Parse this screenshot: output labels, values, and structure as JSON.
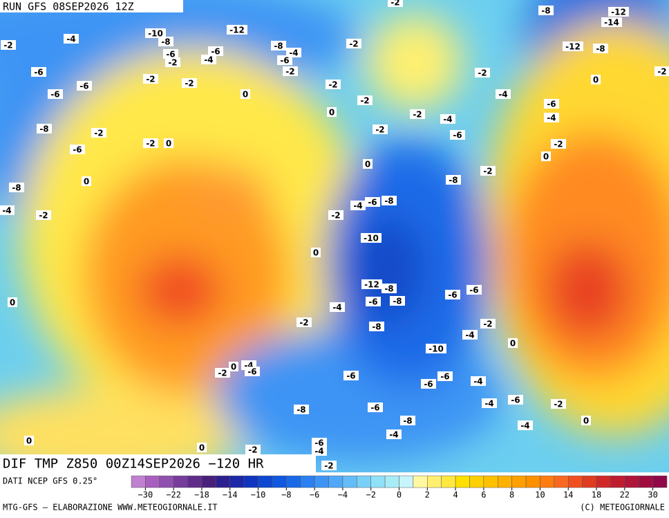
{
  "header": {
    "run": "RUN GFS 08SEP2026 12Z"
  },
  "map": {
    "labels": [
      "-2",
      "-8",
      "-12",
      "-14",
      "-12",
      "-10",
      "-8",
      "-4",
      "-2",
      "-6",
      "-2",
      "-6",
      "-4",
      "-8",
      "-4",
      "-6",
      "-2",
      "-12",
      "-8",
      "-2",
      "-2",
      "-2",
      "-6",
      "-2",
      "-2",
      "-6",
      "-6",
      "0",
      "-2",
      "0",
      "-4",
      "-2",
      "-6",
      "-4",
      "-2",
      "-4",
      "0",
      "-8",
      "-2",
      "-2",
      "-6",
      "-2",
      "0",
      "-6",
      "-2",
      "0",
      "0",
      "-2",
      "-8",
      "0",
      "-8",
      "-4",
      "-2",
      "-4",
      "-6",
      "-8",
      "-2",
      "-10",
      "0",
      "-12",
      "-8",
      "-6",
      "-6",
      "0",
      "-6",
      "-8",
      "-4",
      "-2",
      "-2",
      "-8",
      "-4",
      "0",
      "-10",
      "0",
      "-4",
      "-6",
      "-2",
      "-6",
      "-6",
      "-6",
      "-4",
      "-4",
      "-6",
      "-2",
      "-6",
      "-8",
      "-8",
      "0",
      "-4",
      "-4",
      "0",
      "-6",
      "0",
      "-2",
      "-4",
      "-2"
    ]
  },
  "banner": {
    "title": "DIF TMP Z850 00Z14SEP2026 −120 HR"
  },
  "legend": {
    "source": "DATI NCEP GFS 0.25°",
    "colors": [
      "#c080d0",
      "#a860c0",
      "#9050b0",
      "#783c9c",
      "#602c8c",
      "#48207c",
      "#2c2090",
      "#1c28a8",
      "#1034c0",
      "#0c48d0",
      "#1058e0",
      "#1a6ae8",
      "#2a80f0",
      "#3c94f4",
      "#50a8f8",
      "#64bcf8",
      "#78d0f8",
      "#90e0f8",
      "#a8ecf8",
      "#c8f4fc",
      "#fff8a0",
      "#fff070",
      "#ffe840",
      "#ffe000",
      "#ffd000",
      "#ffc000",
      "#ffb000",
      "#ffa000",
      "#ff9000",
      "#ff7c10",
      "#f86820",
      "#f05020",
      "#e03c20",
      "#d02828",
      "#c01c30",
      "#b01438",
      "#a00c40",
      "#900848"
    ],
    "ticks": [
      "−30",
      "−22",
      "−18",
      "−14",
      "−10",
      "−8",
      "−6",
      "−4",
      "−2",
      "0",
      "2",
      "4",
      "6",
      "8",
      "10",
      "14",
      "18",
      "22",
      "30"
    ]
  },
  "footer": {
    "credit": "MTG-GFS — ELABORAZIONE WWW.METEOGIORNALE.IT",
    "copyright": "(C) METEOGIORNALE"
  }
}
